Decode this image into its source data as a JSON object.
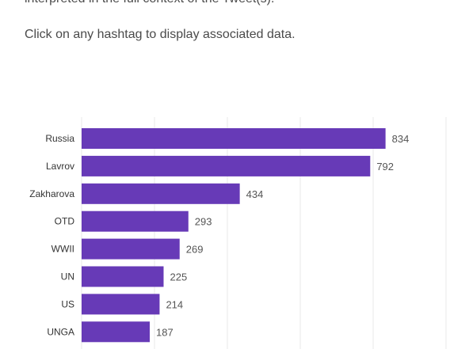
{
  "intro": {
    "line1": "interpreted in the full context of the Tweet(s).",
    "line2": "Click on any hashtag to display associated data."
  },
  "colors": {
    "bar": "#673ab7",
    "grid": "#e8e8e8"
  },
  "chart_data": {
    "type": "bar",
    "orientation": "horizontal",
    "categories": [
      "Russia",
      "Lavrov",
      "Zakharova",
      "OTD",
      "WWII",
      "UN",
      "US",
      "UNGA"
    ],
    "values": [
      834,
      792,
      434,
      293,
      269,
      225,
      214,
      187
    ],
    "title": "",
    "xlabel": "",
    "ylabel": "",
    "xlim": [
      0,
      1000
    ],
    "grid": true,
    "legend": "none"
  }
}
